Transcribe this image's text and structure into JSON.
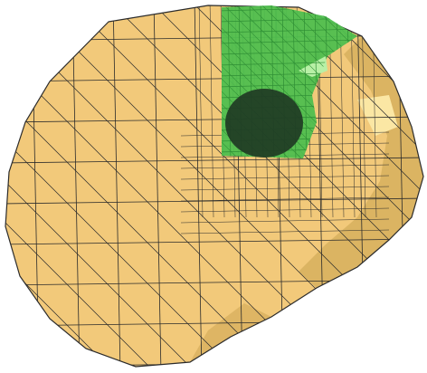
{
  "colors": {
    "background": "#ffffff",
    "mesh_base": "#f2c97a",
    "mesh_shadow": "#c9a24e",
    "mesh_highlight": "#fbe7a4",
    "mesh_lines": "#2b2b2b",
    "region": "#4fbf4f",
    "region_dark": "#2f8f35",
    "region_light": "#b8f0a6",
    "inclusion": "#1f3b24"
  }
}
